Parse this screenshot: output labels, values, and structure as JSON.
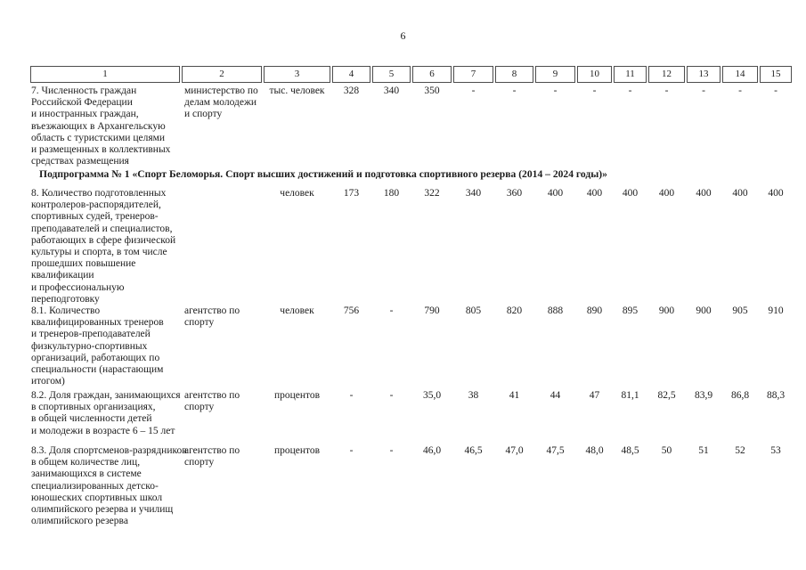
{
  "page": {
    "number": "6"
  },
  "table": {
    "header_cols": [
      "1",
      "2",
      "3",
      "4",
      "5",
      "6",
      "7",
      "8",
      "9",
      "10",
      "11",
      "12",
      "13",
      "14",
      "15"
    ],
    "section_title": "Подпрограмма № 1 «Спорт Беломорья. Спорт высших достижений и подготовка спортивного резерва (2014 – 2024 годы)»",
    "rows": [
      {
        "label": "7. Численность граждан\nРоссийской Федерации\nи иностранных граждан,\nвъезжающих в Архангельскую\nобласть с туристскими целями\nи размещенных в коллективных\nсредствах размещения",
        "agency": "министерство по\nделам молодежи\nи спорту",
        "unit": "тыс. человек",
        "values": [
          "328",
          "340",
          "350",
          "-",
          "-",
          "-",
          "-",
          "-",
          "-",
          "-",
          "-",
          "-"
        ]
      },
      {
        "label": "8. Количество подготовленных\nконтролеров-распорядителей,\nспортивных судей, тренеров-\nпреподавателей и специалистов,\nработающих в сфере физической\nкультуры и спорта, в том числе\nпрошедших повышение\nквалификации\nи профессиональную\nпереподготовку",
        "agency": "",
        "unit": "человек",
        "values": [
          "173",
          "180",
          "322",
          "340",
          "360",
          "400",
          "400",
          "400",
          "400",
          "400",
          "400",
          "400"
        ]
      },
      {
        "label": "8.1. Количество\nквалифицированных тренеров\nи тренеров-преподавателей\nфизкультурно-спортивных\nорганизаций, работающих по\nспециальности (нарастающим\nитогом)",
        "agency": "агентство по\nспорту",
        "unit": "человек",
        "values": [
          "756",
          "-",
          "790",
          "805",
          "820",
          "888",
          "890",
          "895",
          "900",
          "900",
          "905",
          "910"
        ]
      },
      {
        "label": "8.2. Доля граждан, занимающихся\nв спортивных организациях,\nв общей численности детей\nи молодежи в возрасте 6 – 15 лет",
        "agency": "агентство по\nспорту",
        "unit": "процентов",
        "values": [
          "-",
          "-",
          "35,0",
          "38",
          "41",
          "44",
          "47",
          "81,1",
          "82,5",
          "83,9",
          "86,8",
          "88,3"
        ]
      },
      {
        "label": "8.3. Доля спортсменов-разрядников\nв общем количестве лиц,\nзанимающихся в системе\nспециализированных детско-\nюношеских спортивных школ\nолимпийского резерва и училищ\nолимпийского резерва",
        "agency": "агентство по\nспорту",
        "unit": "процентов",
        "values": [
          "-",
          "-",
          "46,0",
          "46,5",
          "47,0",
          "47,5",
          "48,0",
          "48,5",
          "50",
          "51",
          "52",
          "53"
        ]
      }
    ]
  }
}
